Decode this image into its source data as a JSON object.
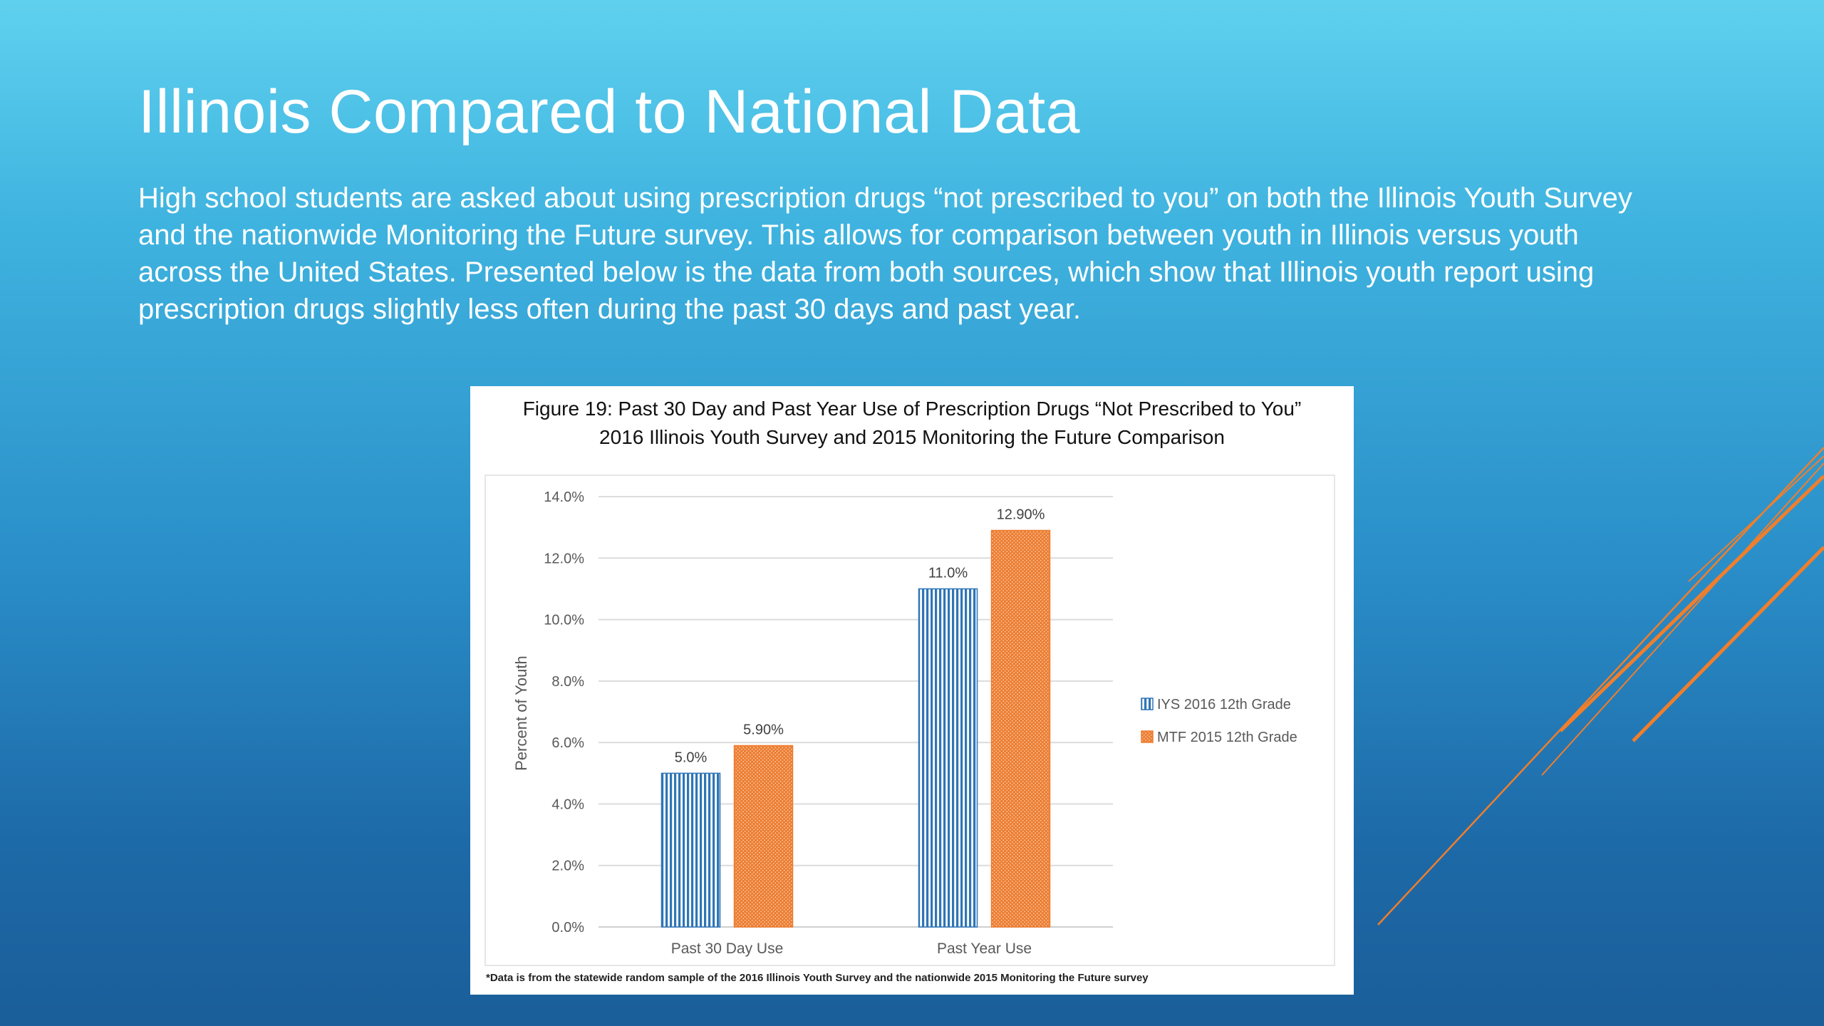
{
  "slide": {
    "title": "Illinois Compared to National Data",
    "body": "High school students are asked about using prescription drugs “not prescribed to you” on both the Illinois Youth Survey and the nationwide Monitoring the Future survey. This allows for comparison between youth in Illinois versus youth across the United States. Presented below is the data from both sources, which show that Illinois youth report using prescription drugs slightly less often during the past 30 days and past year."
  },
  "figure": {
    "caption_line1": "Figure 19: Past 30 Day and Past Year Use of Prescription Drugs “Not Prescribed to You”",
    "caption_line2": "2016 Illinois Youth Survey and 2015 Monitoring the Future Comparison",
    "footnote": "*Data is from the statewide random sample of the 2016 Illinois Youth Survey and the nationwide 2015 Monitoring the Future survey"
  },
  "colors": {
    "accent_orange": "#ed7d31",
    "accent_blue": "#2e75b6",
    "deco_lines": "#f07e2b"
  },
  "chart_data": {
    "type": "bar",
    "title": "",
    "xlabel": "",
    "ylabel": "Percent of Youth",
    "categories": [
      "Past 30 Day Use",
      "Past Year Use"
    ],
    "ylim": [
      0,
      14
    ],
    "yticks": [
      0,
      2,
      4,
      6,
      8,
      10,
      12,
      14
    ],
    "ytick_labels": [
      "0.0%",
      "2.0%",
      "4.0%",
      "6.0%",
      "8.0%",
      "10.0%",
      "12.0%",
      "14.0%"
    ],
    "grid": true,
    "legend_position": "right",
    "series": [
      {
        "name": "IYS 2016 12th Grade",
        "color": "#2e75b6",
        "pattern": "vertical-stripes",
        "values": [
          5.0,
          11.0
        ],
        "labels": [
          "5.0%",
          "11.0%"
        ]
      },
      {
        "name": "MTF 2015 12th Grade",
        "color": "#ed7d31",
        "pattern": "dotted",
        "values": [
          5.9,
          12.9
        ],
        "labels": [
          "5.90%",
          "12.90%"
        ]
      }
    ]
  }
}
